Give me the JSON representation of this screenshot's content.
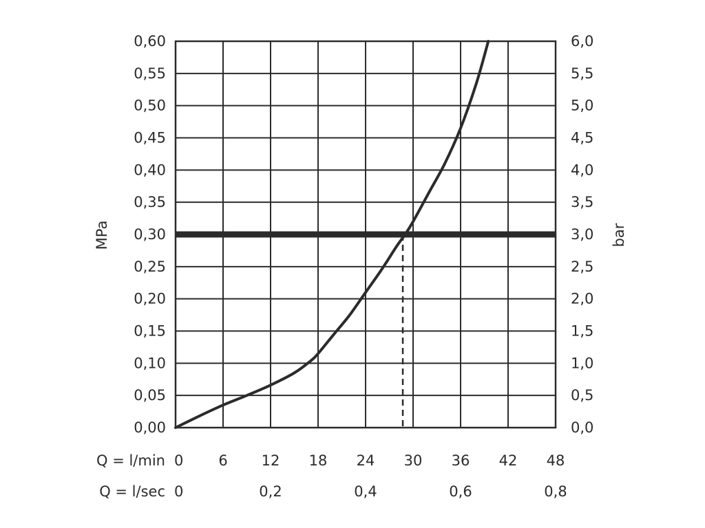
{
  "chart_data": {
    "type": "line",
    "left_axis": {
      "label": "MPa",
      "range": [
        0,
        0.6
      ],
      "ticks": [
        "0,00",
        "0,05",
        "0,10",
        "0,15",
        "0,20",
        "0,25",
        "0,30",
        "0,35",
        "0,40",
        "0,45",
        "0,50",
        "0,55",
        "0,60"
      ]
    },
    "right_axis": {
      "label": "bar",
      "range": [
        0,
        6
      ],
      "ticks": [
        "0,0",
        "0,5",
        "1,0",
        "1,5",
        "2,0",
        "2,5",
        "3,0",
        "3,5",
        "4,0",
        "4,5",
        "5,0",
        "5,5",
        "6,0"
      ]
    },
    "x_axis": {
      "range": [
        0,
        48
      ],
      "row1_label": "Q = l/min",
      "row1_ticks": [
        "0",
        "6",
        "12",
        "18",
        "24",
        "30",
        "36",
        "42",
        "48"
      ],
      "row2_label": "Q = l/sec",
      "row2_ticks": [
        {
          "value": 0,
          "text": "0"
        },
        {
          "value": 12,
          "text": "0,2"
        },
        {
          "value": 24,
          "text": "0,4"
        },
        {
          "value": 36,
          "text": "0,6"
        },
        {
          "value": 48,
          "text": "0,8"
        }
      ]
    },
    "grid": true,
    "series": [
      {
        "x": [
          0,
          3,
          6,
          9,
          12,
          15,
          17,
          18,
          20,
          22,
          24,
          26,
          28,
          29,
          30,
          32,
          34,
          36,
          38,
          39.5
        ],
        "y": [
          0.0,
          0.018,
          0.035,
          0.05,
          0.066,
          0.085,
          0.103,
          0.115,
          0.145,
          0.175,
          0.21,
          0.245,
          0.283,
          0.3,
          0.32,
          0.365,
          0.41,
          0.465,
          0.535,
          0.6
        ]
      }
    ],
    "reference_line": {
      "y": 0.3
    },
    "operating_point": {
      "x": 28.7,
      "y": 0.3
    }
  }
}
